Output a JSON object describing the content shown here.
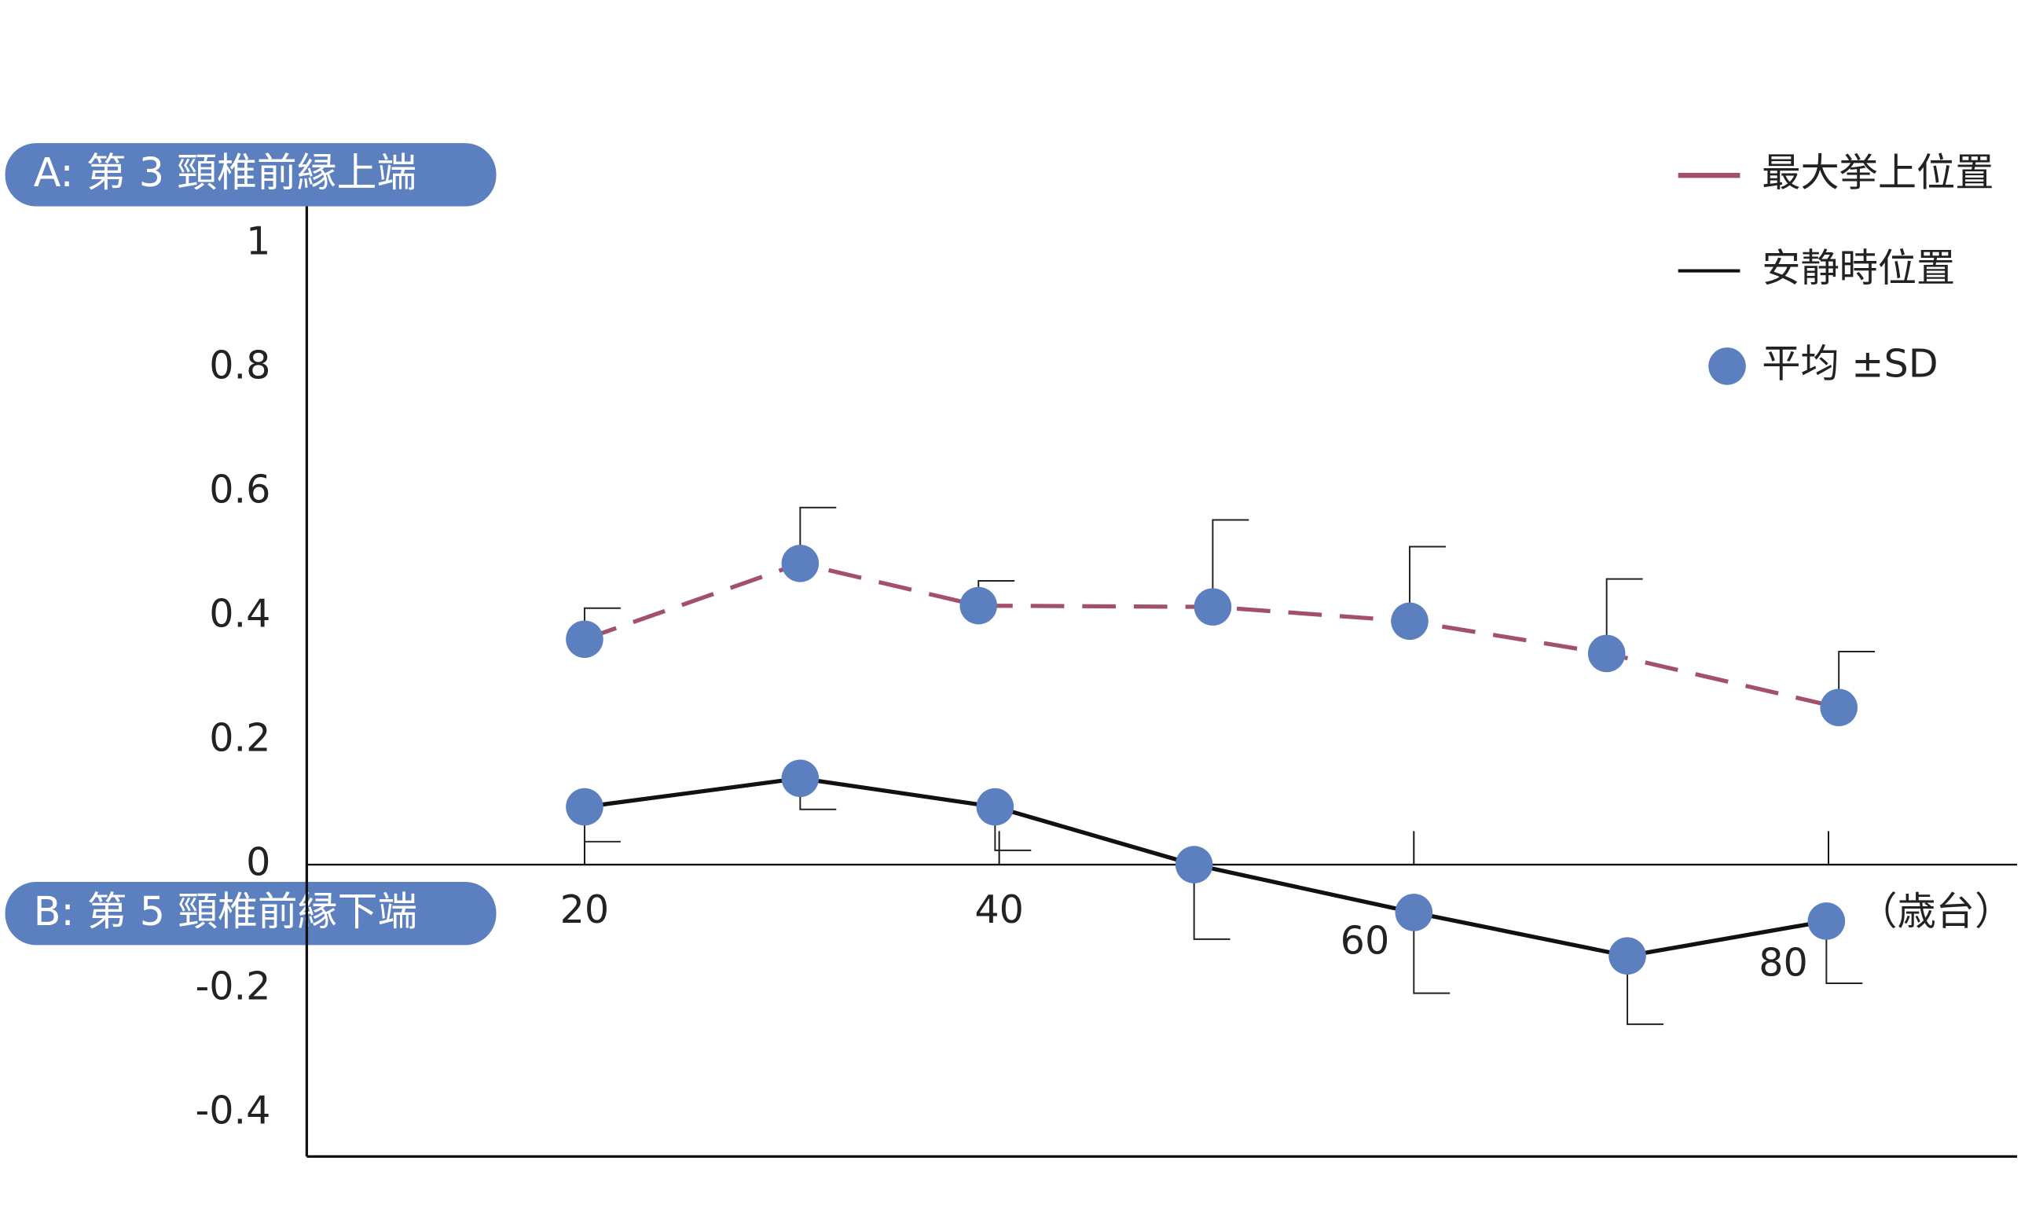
{
  "chart_data": {
    "type": "line",
    "annotations": [
      "A: 第 3 頸椎前縁上端",
      "B: 第 5 頸椎前縁下端"
    ],
    "x_label": "（歳台）",
    "xlim": [
      6.6,
      89.1
    ],
    "xticks": [
      20,
      40,
      60,
      80
    ],
    "ylim": [
      -0.47,
      1.06
    ],
    "yticks": [
      1,
      0.8,
      0.6,
      0.4,
      0.2,
      0,
      -0.2,
      -0.4
    ],
    "marker_color": "#5b7fbf",
    "marker_legend": "平均 ±SD",
    "legend": "top-right",
    "series": [
      {
        "name": "最大挙上位置",
        "color": "#a3506a",
        "dashed": true,
        "error_direction": "up",
        "x": [
          20,
          30.4,
          39,
          50.3,
          59.8,
          69.3,
          80.5
        ],
        "values": [
          0.363,
          0.485,
          0.417,
          0.415,
          0.392,
          0.34,
          0.253
        ],
        "errors": [
          0.05,
          0.09,
          0.04,
          0.14,
          0.12,
          0.12,
          0.09
        ]
      },
      {
        "name": "安静時位置",
        "color": "#111111",
        "dashed": false,
        "error_direction": "down",
        "x": [
          20,
          30.4,
          39.8,
          49.4,
          60,
          70.3,
          79.9
        ],
        "values": [
          0.093,
          0.139,
          0.093,
          0,
          -0.077,
          -0.147,
          -0.091
        ],
        "errors": [
          0.056,
          0.05,
          0.07,
          0.12,
          0.13,
          0.11,
          0.1
        ]
      }
    ]
  }
}
